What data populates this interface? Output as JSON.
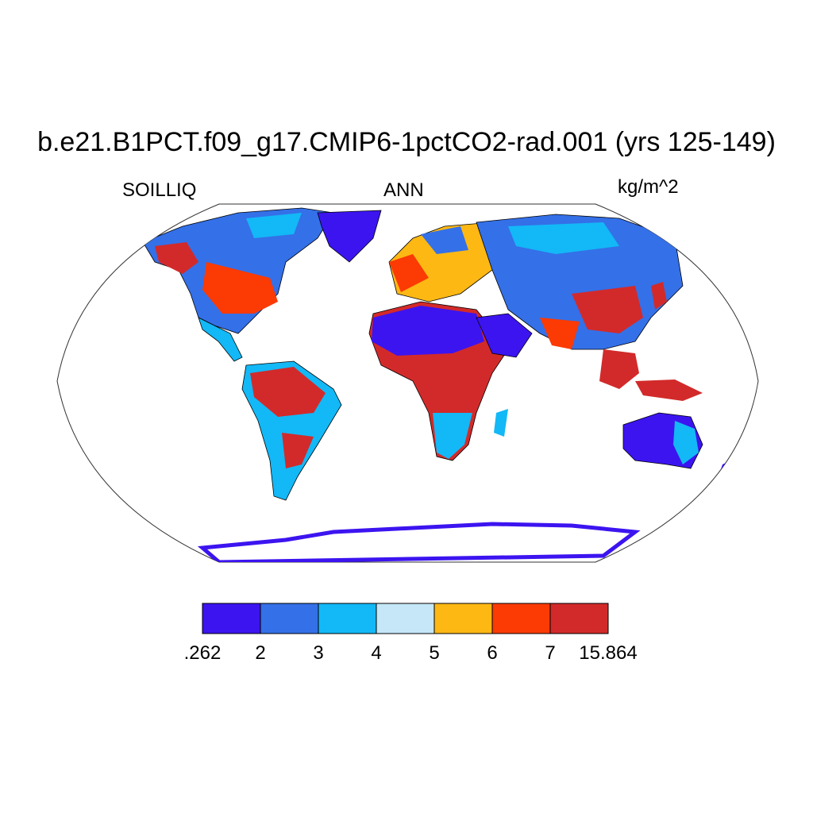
{
  "title": "b.e21.B1PCT.f09_g17.CMIP6-1pctCO2-rad.001 (yrs 125-149)",
  "left_label": "SOILLIQ",
  "center_label": "ANN",
  "right_label": "kg/m^2",
  "legend": {
    "bins": [
      {
        "from": ".262",
        "to": "2",
        "color": "#3c14f0"
      },
      {
        "from": "2",
        "to": "3",
        "color": "#3470e8"
      },
      {
        "from": "3",
        "to": "4",
        "color": "#13b8f6"
      },
      {
        "from": "4",
        "to": "5",
        "color": "#c5e7f8"
      },
      {
        "from": "5",
        "to": "6",
        "color": "#fdb814"
      },
      {
        "from": "6",
        "to": "7",
        "color": "#fb3a04"
      },
      {
        "from": "7",
        "to": "15.864",
        "color": "#d22a2a"
      }
    ],
    "tick_labels": [
      ".262",
      "2",
      "3",
      "4",
      "5",
      "6",
      "7",
      "15.864"
    ]
  },
  "map": {
    "projection": "Robinson",
    "land_regions": [
      {
        "name": "North America",
        "dominant_colors": [
          "#fb3a04",
          "#3470e8",
          "#13b8f6",
          "#3c14f0"
        ]
      },
      {
        "name": "Greenland",
        "dominant_colors": [
          "#3c14f0"
        ]
      },
      {
        "name": "South America",
        "dominant_colors": [
          "#d22a2a",
          "#fb3a04",
          "#13b8f6"
        ]
      },
      {
        "name": "Europe",
        "dominant_colors": [
          "#fb3a04",
          "#fdb814",
          "#c5e7f8"
        ]
      },
      {
        "name": "Africa",
        "dominant_colors": [
          "#3c14f0",
          "#d22a2a",
          "#13b8f6"
        ]
      },
      {
        "name": "Asia",
        "dominant_colors": [
          "#3470e8",
          "#13b8f6",
          "#d22a2a"
        ]
      },
      {
        "name": "Australia",
        "dominant_colors": [
          "#3c14f0",
          "#13b8f6",
          "#fdb814"
        ]
      },
      {
        "name": "Antarctica",
        "dominant_colors": [
          "#3c14f0"
        ]
      }
    ]
  }
}
